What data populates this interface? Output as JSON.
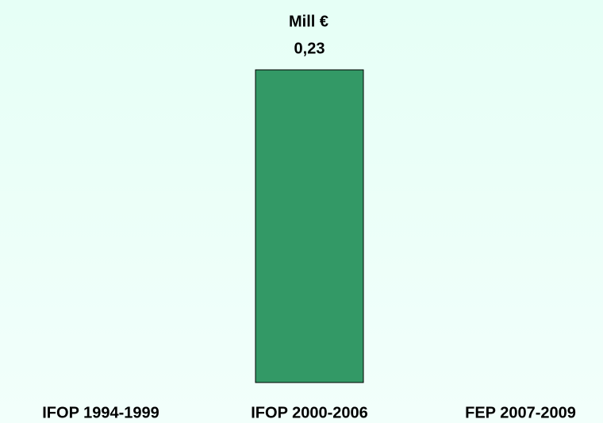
{
  "chart_data": {
    "type": "bar",
    "title": "Mill €",
    "categories": [
      "IFOP 1994-1999",
      "IFOP 2000-2006",
      "FEP 2007-2009"
    ],
    "values": [
      null,
      0.23,
      null
    ],
    "value_labels": [
      null,
      "0,23",
      null
    ],
    "color": "#339966",
    "ylim": [
      0,
      0.23
    ]
  }
}
